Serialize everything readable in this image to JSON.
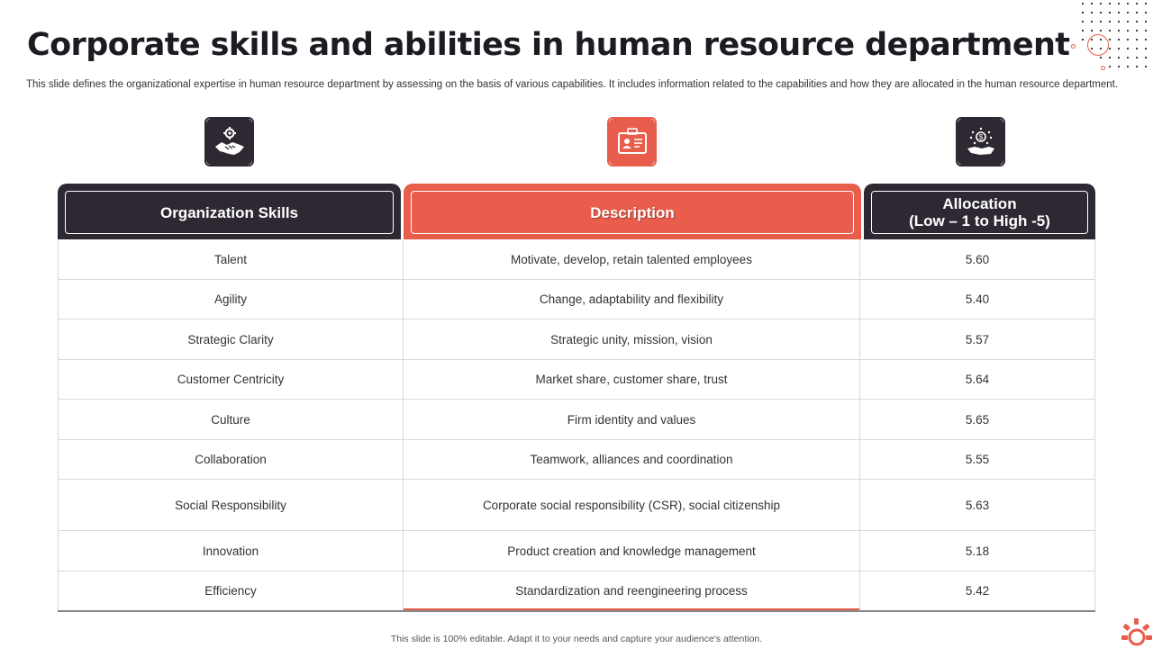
{
  "title": "Corporate skills and abilities in human resource department",
  "subtitle": "This slide defines the organizational expertise in human resource department by assessing on the basis of various capabilities. It includes information related to the capabilities and how they are allocated in the human resource department.",
  "icons": {
    "skills": "handshake-gear-icon",
    "description": "id-card-icon",
    "allocation": "hand-coins-icon"
  },
  "colors": {
    "dark": "#2e2832",
    "accent": "#e85d4c"
  },
  "table": {
    "headers": {
      "skills": "Organization Skills",
      "description": "Description",
      "allocation_line1": "Allocation",
      "allocation_line2": "(Low – 1 to High -5)"
    },
    "rows": [
      {
        "skill": "Talent",
        "description": "Motivate, develop,  retain talented employees",
        "allocation": "5.60"
      },
      {
        "skill": "Agility",
        "description": "Change,  adaptability and flexibility",
        "allocation": "5.40"
      },
      {
        "skill": "Strategic Clarity",
        "description": "Strategic unity, mission, vision",
        "allocation": "5.57"
      },
      {
        "skill": "Customer Centricity",
        "description": "Market share,  customer share,  trust",
        "allocation": "5.64"
      },
      {
        "skill": "Culture",
        "description": "Firm identity and values",
        "allocation": "5.65"
      },
      {
        "skill": "Collaboration",
        "description": "Teamwork,  alliances and coordination",
        "allocation": "5.55"
      },
      {
        "skill": "Social Responsibility",
        "description": "Corporate  social responsibility (CSR), social citizenship",
        "allocation": "5.63"
      },
      {
        "skill": "Innovation",
        "description": "Product creation and knowledge  management",
        "allocation": "5.18"
      },
      {
        "skill": "Efficiency",
        "description": "Standardization and reengineering  process",
        "allocation": "5.42"
      }
    ]
  },
  "footer": "This slide is 100% editable.  Adapt it to your needs and capture your audience's attention."
}
